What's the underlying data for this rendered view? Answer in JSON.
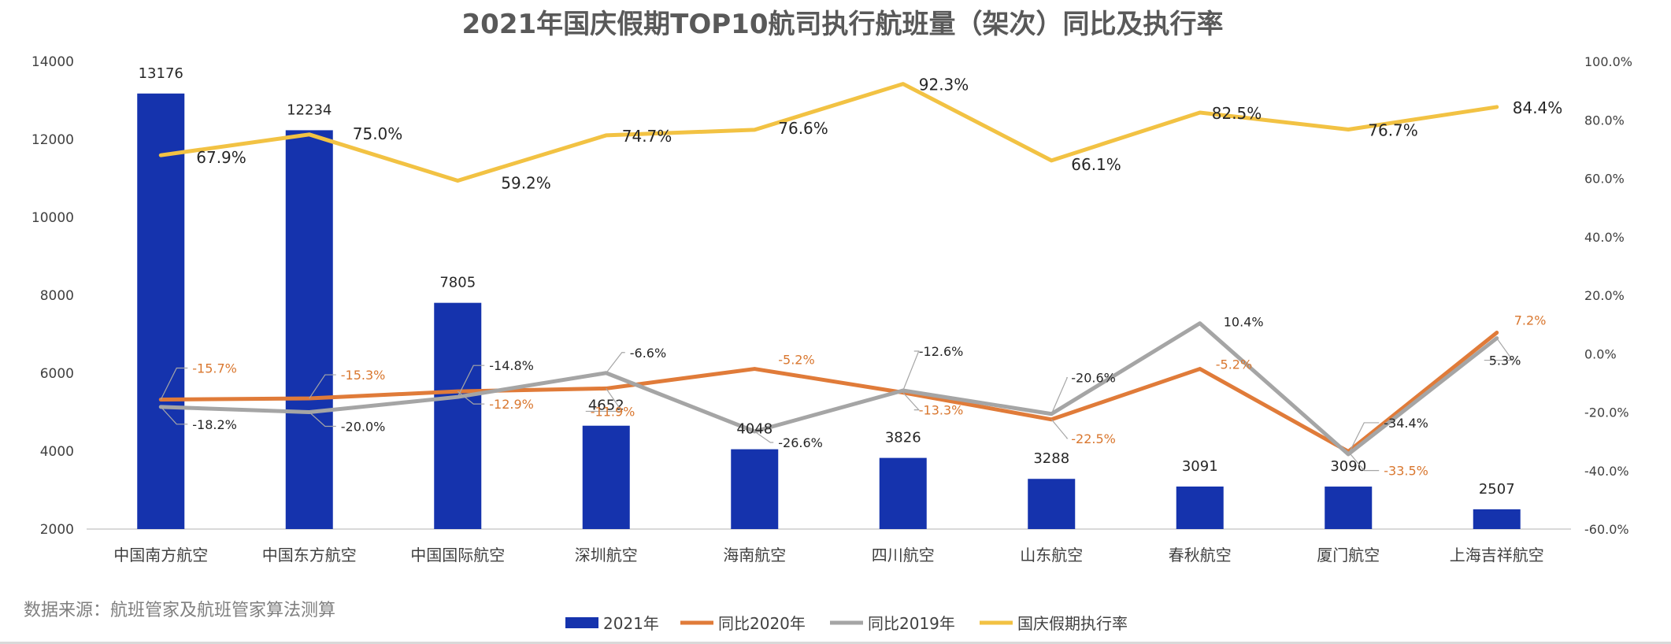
{
  "chart_data": {
    "type": "bar",
    "title": "2021年国庆假期TOP10航司执行航班量（架次）同比及执行率",
    "categories": [
      "中国南方航空",
      "中国东方航空",
      "中国国际航空",
      "深圳航空",
      "海南航空",
      "四川航空",
      "山东航空",
      "春秋航空",
      "厦门航空",
      "上海吉祥航空"
    ],
    "left_axis": {
      "ylim": [
        2000,
        14000
      ],
      "ticks": [
        "14000",
        "12000",
        "10000",
        "8000",
        "6000",
        "4000",
        "2000"
      ]
    },
    "right_axis": {
      "ylim": [
        -60,
        100
      ],
      "ticks": [
        "100.0%",
        "80.0%",
        "60.0%",
        "40.0%",
        "20.0%",
        "0.0%",
        "-20.0%",
        "-40.0%",
        "-60.0%"
      ]
    },
    "series": [
      {
        "name": "2021年",
        "kind": "bar",
        "axis": "left",
        "color": "#1533ad",
        "values": [
          13176,
          12234,
          7805,
          4652,
          4048,
          3826,
          3288,
          3091,
          3090,
          2507
        ],
        "labels": [
          "13176",
          "12234",
          "7805",
          "4652",
          "4048",
          "3826",
          "3288",
          "3091",
          "3090",
          "2507"
        ]
      },
      {
        "name": "同比2020年",
        "kind": "line",
        "axis": "right",
        "color": "#e07b39",
        "values": [
          -15.7,
          -15.3,
          -12.9,
          -11.9,
          -5.2,
          -13.3,
          -22.5,
          -5.2,
          -33.5,
          7.2
        ],
        "labels": [
          "-15.7%",
          "-15.3%",
          "-12.9%",
          "-11.9%",
          "-5.2%",
          "-13.3%",
          "-22.5%",
          "-5.2%",
          "-33.5%",
          "7.2%"
        ]
      },
      {
        "name": "同比2019年",
        "kind": "line",
        "axis": "right",
        "color": "#a5a5a5",
        "values": [
          -18.2,
          -20.0,
          -14.8,
          -6.6,
          -26.6,
          -12.6,
          -20.6,
          10.4,
          -34.4,
          5.3
        ],
        "labels": [
          "-18.2%",
          "-20.0%",
          "-14.8%",
          "-6.6%",
          "-26.6%",
          "-12.6%",
          "-20.6%",
          "10.4%",
          "-34.4%",
          "5.3%"
        ]
      },
      {
        "name": "国庆假期执行率",
        "kind": "line",
        "axis": "right",
        "color": "#f2c243",
        "values": [
          67.9,
          75.0,
          59.2,
          74.7,
          76.6,
          92.3,
          66.1,
          82.5,
          76.7,
          84.4
        ],
        "labels": [
          "67.9%",
          "75.0%",
          "59.2%",
          "74.7%",
          "76.6%",
          "92.3%",
          "66.1%",
          "82.5%",
          "76.7%",
          "84.4%"
        ]
      }
    ],
    "legend": "bottom",
    "grid": false
  },
  "source": "数据来源：航班管家及航班管家算法测算",
  "colors": {
    "title": "#595959",
    "axis_text": "#404040",
    "cat_text": "#404040",
    "axis_line": "#d9d9d9"
  }
}
